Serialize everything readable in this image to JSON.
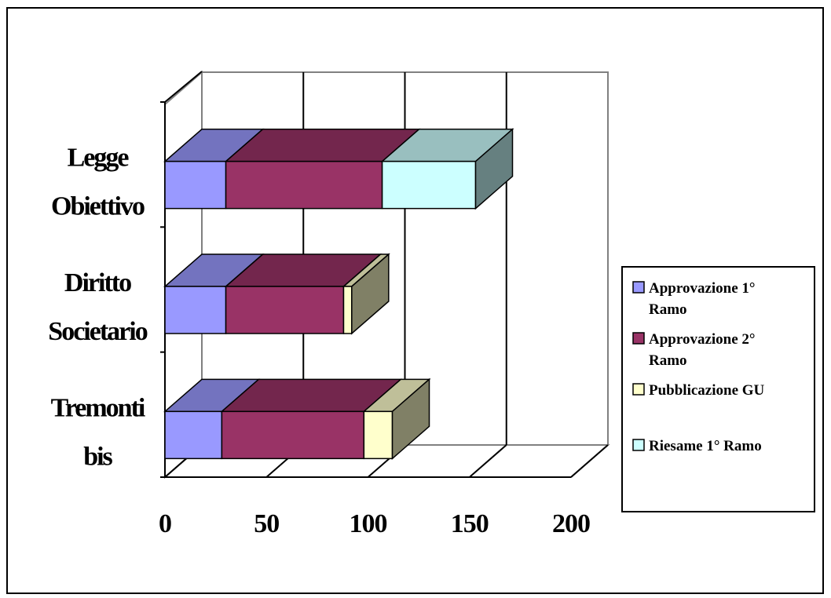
{
  "chart_data": {
    "type": "bar",
    "orientation": "horizontal",
    "stacked": true,
    "three_d": true,
    "categories": [
      "Legge Obiettivo",
      "Diritto Societario",
      "Tremonti bis"
    ],
    "category_lines": [
      [
        "Legge",
        "Obiettivo"
      ],
      [
        "Diritto",
        "Societario"
      ],
      [
        "Tremonti",
        "bis"
      ]
    ],
    "series": [
      {
        "name": "Approvazione 1° Ramo",
        "name_lines": [
          "Approvazione 1°",
          "Ramo"
        ],
        "values": [
          30,
          30,
          28
        ],
        "color": "#9999ff"
      },
      {
        "name": "Approvazione 2° Ramo",
        "name_lines": [
          "Approvazione 2°",
          "Ramo"
        ],
        "values": [
          77,
          58,
          70
        ],
        "color": "#993366"
      },
      {
        "name": "Pubblicazione GU",
        "name_lines": [
          "Pubblicazione GU"
        ],
        "values": [
          0,
          4,
          14
        ],
        "color": "#ffffcc"
      },
      {
        "name": "Riesame 1° Ramo",
        "name_lines": [
          "Riesame 1° Ramo"
        ],
        "values": [
          46,
          0,
          0
        ],
        "color": "#ccffff"
      }
    ],
    "x_ticks": [
      "0",
      "50",
      "100",
      "150",
      "200"
    ],
    "xlim": [
      0,
      200
    ],
    "gridlines": true,
    "legend_position": "right"
  }
}
